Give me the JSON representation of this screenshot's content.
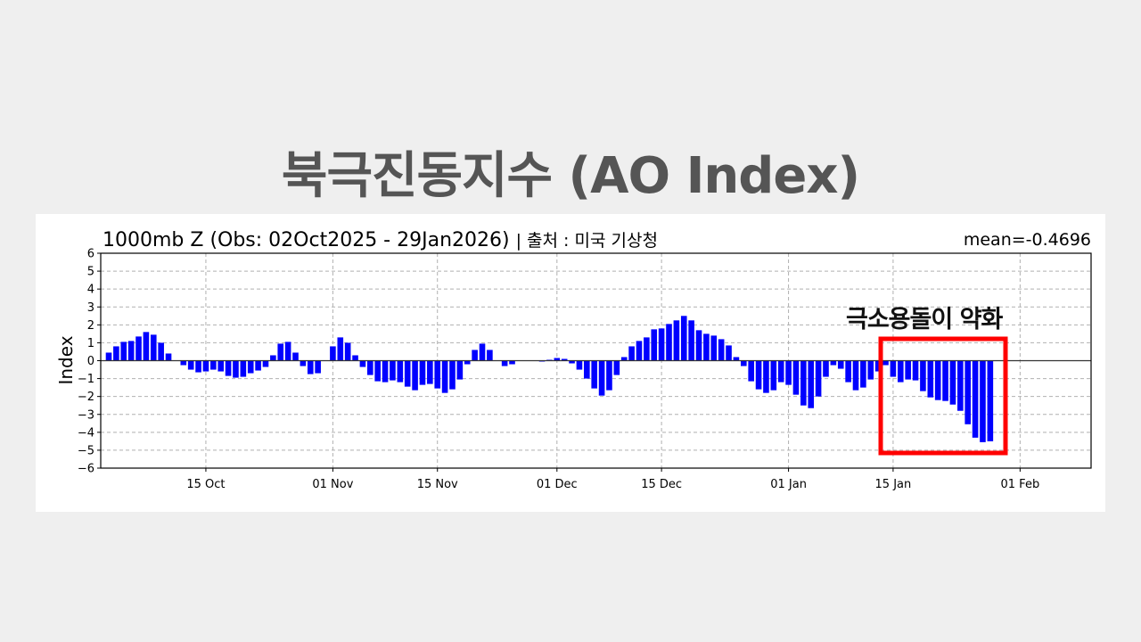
{
  "headline": "북극진동지수 (AO Index)",
  "chart_header": {
    "title": "1000mb Z (Obs: 02Oct2025 - 29Jan2026)",
    "source": "| 출처 : 미국 기상청",
    "mean": "mean=-0.4696"
  },
  "annotation": {
    "label": "극소용돌이 약화",
    "box_color": "#ff0000"
  },
  "colors": {
    "bar": "#0000ff",
    "highlight": "#ff0000",
    "headline": "#555555"
  },
  "chart_data": {
    "type": "bar",
    "title": "1000mb Z (Obs: 02Oct2025 - 29Jan2026)",
    "subtitle": "mean=-0.4696",
    "xlabel": "",
    "ylabel": "Index",
    "ylim": [
      -6,
      6
    ],
    "yticks": [
      6,
      5,
      4,
      3,
      2,
      1,
      0,
      -1,
      -2,
      -3,
      -4,
      -5,
      -6
    ],
    "xticks": [
      "15 Oct",
      "01 Nov",
      "15 Nov",
      "01 Dec",
      "15 Dec",
      "01 Jan",
      "15 Jan",
      "01 Feb"
    ],
    "xtick_day_index": [
      13,
      30,
      44,
      60,
      74,
      91,
      105,
      122
    ],
    "grid": true,
    "start_date": "2025-10-02",
    "end_date": "2026-01-29",
    "values": [
      0.45,
      0.8,
      1.05,
      1.1,
      1.35,
      1.6,
      1.45,
      1.0,
      0.4,
      0.0,
      -0.25,
      -0.5,
      -0.65,
      -0.6,
      -0.5,
      -0.6,
      -0.85,
      -0.95,
      -0.9,
      -0.7,
      -0.55,
      -0.35,
      0.3,
      0.95,
      1.05,
      0.45,
      -0.3,
      -0.75,
      -0.7,
      0.0,
      0.8,
      1.3,
      1.0,
      0.3,
      -0.35,
      -0.8,
      -1.15,
      -1.2,
      -1.1,
      -1.2,
      -1.45,
      -1.65,
      -1.35,
      -1.3,
      -1.55,
      -1.8,
      -1.6,
      -1.05,
      -0.2,
      0.6,
      0.95,
      0.6,
      0.0,
      -0.3,
      -0.2,
      0.0,
      0.0,
      0.0,
      -0.05,
      0.05,
      0.15,
      0.1,
      -0.15,
      -0.5,
      -1.0,
      -1.55,
      -1.95,
      -1.65,
      -0.8,
      0.2,
      0.8,
      1.1,
      1.3,
      1.75,
      1.8,
      2.05,
      2.25,
      2.5,
      2.25,
      1.7,
      1.5,
      1.4,
      1.2,
      0.85,
      0.2,
      -0.3,
      -1.15,
      -1.6,
      -1.8,
      -1.65,
      -1.2,
      -1.35,
      -1.9,
      -2.5,
      -2.65,
      -2.0,
      -0.9,
      -0.25,
      -0.45,
      -1.2,
      -1.65,
      -1.5,
      -1.05,
      -0.6,
      -0.25,
      -0.9,
      -1.2,
      -1.05,
      -1.1,
      -1.7,
      -2.05,
      -2.2,
      -2.25,
      -2.45,
      -2.8,
      -3.55,
      -4.3,
      -4.55,
      -4.5
    ],
    "annotations": [
      {
        "text": "극소용돌이 약화",
        "x_range": [
          "2026-01-14",
          "2026-02-01"
        ],
        "y_range": [
          -5.2,
          1.2
        ],
        "style": "red rectangle"
      }
    ]
  }
}
